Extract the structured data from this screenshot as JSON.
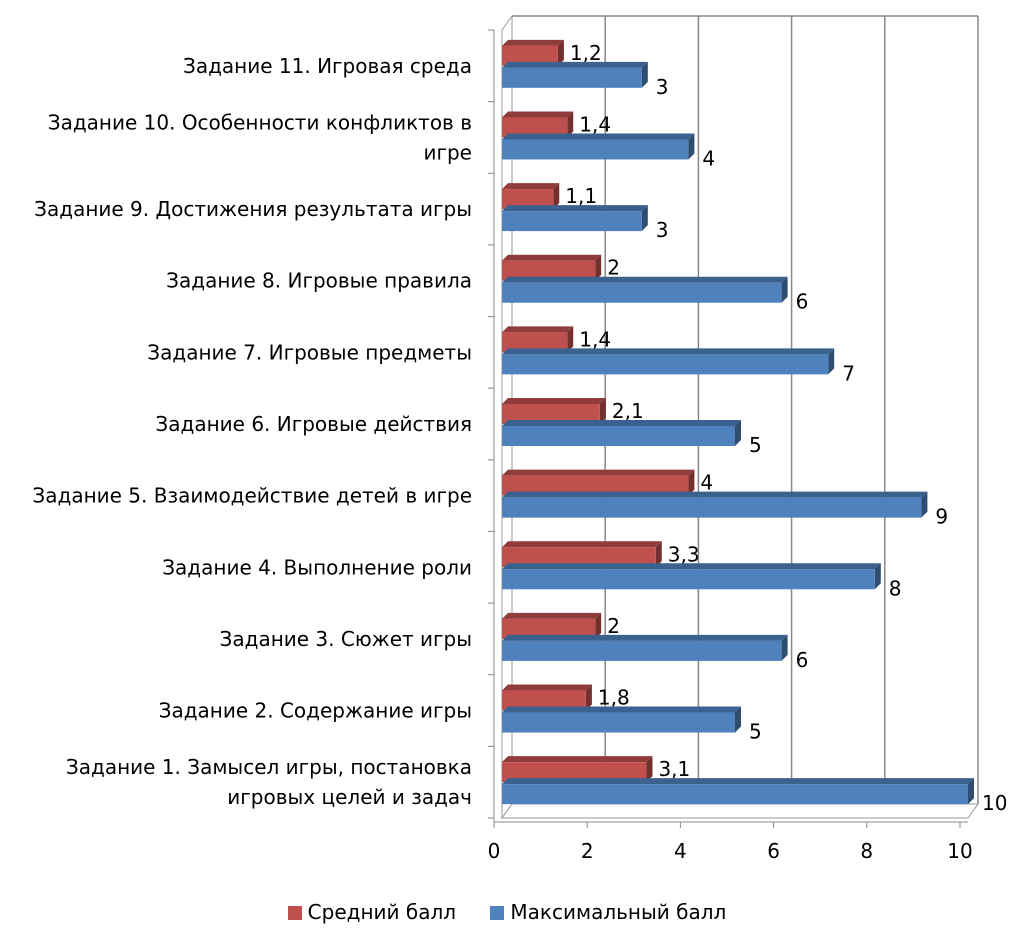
{
  "chart_data": {
    "type": "bar",
    "orientation": "horizontal",
    "categories": [
      [
        "Задание 1. Замысел игры, постановка",
        "игровых целей и задач"
      ],
      [
        "Задание 2. Содержание игры"
      ],
      [
        "Задание 3. Сюжет игры"
      ],
      [
        "Задание 4. Выполнение роли"
      ],
      [
        "Задание 5. Взаимодействие детей в игре"
      ],
      [
        "Задание 6. Игровые действия"
      ],
      [
        "Задание 7. Игровые предметы"
      ],
      [
        "Задание 8. Игровые правила"
      ],
      [
        "Задание 9. Достижения результата игры"
      ],
      [
        "Задание 10. Особенности конфликтов в",
        "игре"
      ],
      [
        "Задание 11. Игровая среда"
      ]
    ],
    "series": [
      {
        "name": "Средний балл",
        "color": "#c0504d",
        "values": [
          3.1,
          1.8,
          2,
          3.3,
          4,
          2.1,
          1.4,
          2,
          1.1,
          1.4,
          1.2
        ],
        "labels": [
          "3,1",
          "1,8",
          "2",
          "3,3",
          "4",
          "2,1",
          "1,4",
          "2",
          "1,1",
          "1,4",
          "1,2"
        ]
      },
      {
        "name": "Максимальный балл",
        "color": "#4f81bd",
        "values": [
          10,
          5,
          6,
          8,
          9,
          5,
          7,
          6,
          3,
          4,
          3
        ],
        "labels": [
          "10",
          "5",
          "6",
          "8",
          "9",
          "5",
          "7",
          "6",
          "3",
          "4",
          "3"
        ]
      }
    ],
    "xlim": [
      0,
      10
    ],
    "ticks": [
      "0",
      "2",
      "4",
      "6",
      "8",
      "10"
    ],
    "grid": true,
    "style": "3d",
    "legend_position": "bottom"
  }
}
